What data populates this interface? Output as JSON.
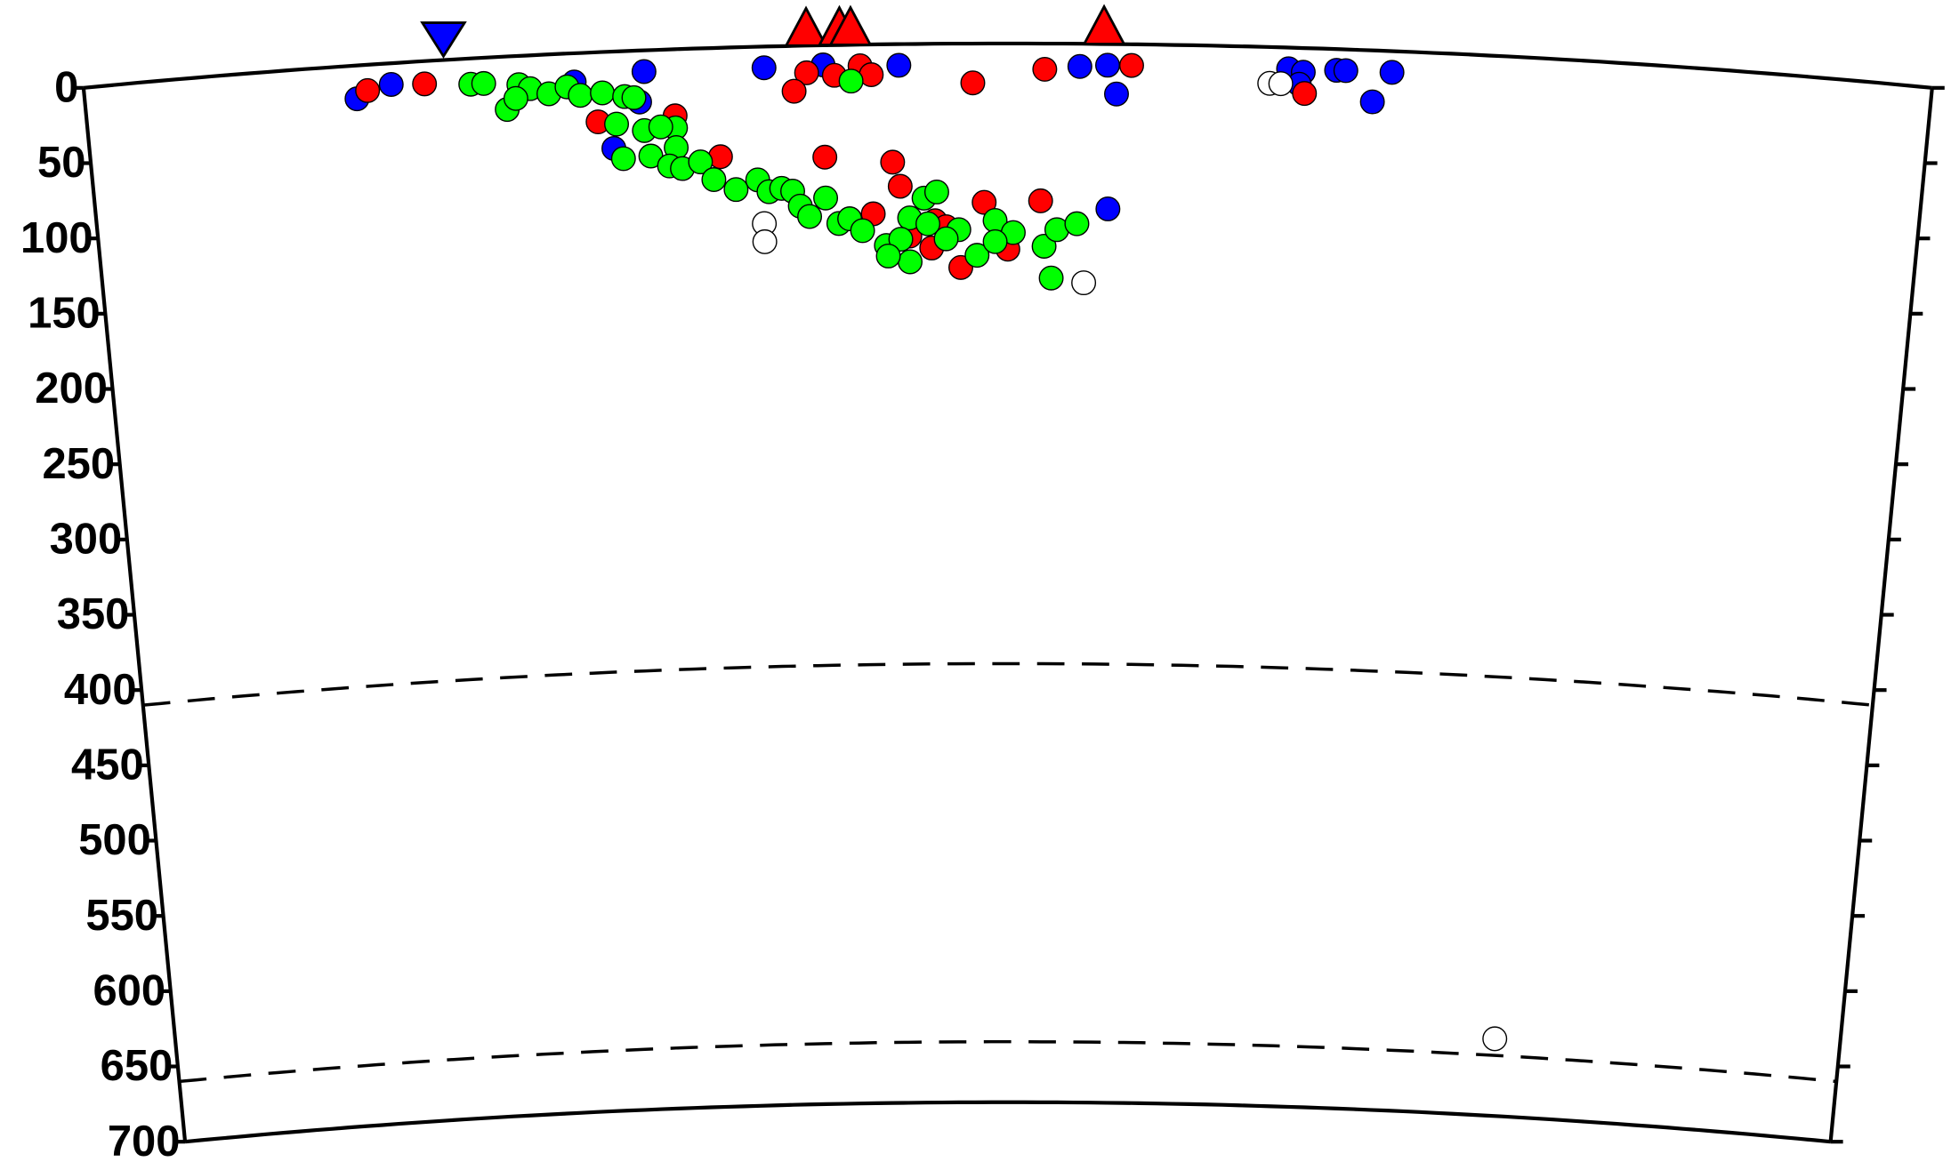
{
  "chart_data": {
    "type": "scatter",
    "xlim": [
      0,
      100
    ],
    "ylim": [
      0,
      700
    ],
    "yticks": [
      0,
      50,
      100,
      150,
      200,
      250,
      300,
      350,
      400,
      450,
      500,
      550,
      600,
      650,
      700
    ],
    "discontinuities": [
      410,
      660
    ],
    "volcanoes": [
      39.1,
      40.9,
      41.5,
      55.2
    ],
    "trench": 19.5,
    "series": [
      {
        "color": "#0000ff",
        "x": [
          14.7,
          16.6,
          26.5,
          30.3,
          28.5,
          30,
          36.8,
          40,
          44.1,
          53.9,
          55.4,
          55.9,
          55.5,
          65.2,
          66,
          65.8,
          67.8,
          68.3,
          70.8,
          69.8
        ],
        "values": [
          22,
          14,
          19,
          14,
          64,
          34,
          14,
          13,
          14,
          15,
          14,
          33,
          109,
          14,
          16,
          24,
          14,
          14,
          14,
          34
        ]
      },
      {
        "color": "#ff0000",
        "x": [
          15.3,
          18.4,
          27.7,
          31.9,
          34.3,
          39.1,
          38.4,
          40.6,
          42,
          42.6,
          40,
          43.7,
          48.1,
          52,
          56.7,
          66.1,
          51.8,
          48.7,
          46,
          42.6,
          41.3,
          44.1,
          45.8,
          47.4,
          50,
          46.6,
          44.6
        ],
        "values": [
          17,
          15,
          46,
          44,
          72,
          18,
          30,
          20,
          14,
          20,
          74,
          78,
          26,
          17,
          14,
          30,
          104,
          105,
          117,
          112,
          115,
          94,
          135,
          148,
          136,
          121,
          127
        ]
      },
      {
        "color": "#00ff00",
        "x": [
          20.9,
          21.6,
          23.5,
          24.1,
          22.8,
          23.3,
          25.1,
          26.1,
          26.8,
          28,
          29.2,
          29.7,
          28.7,
          30.2,
          31.9,
          31.1,
          31.9,
          29,
          30.5,
          31.5,
          32.2,
          33.2,
          33.9,
          35.1,
          36.3,
          36.9,
          37.6,
          38.2,
          38.6,
          39.1,
          40,
          40.7,
          41.3,
          42,
          43.3,
          44.6,
          45.4,
          46.1,
          45.6,
          44.1,
          44.6,
          47.3,
          48.3,
          49.3,
          50.3,
          52,
          52.7,
          53.8,
          52.4,
          41.5,
          43.4,
          46.6,
          49.3
        ],
        "values": [
          17,
          17,
          19,
          22,
          35,
          28,
          26,
          22,
          28,
          27,
          30,
          31,
          48,
          53,
          52,
          51,
          65,
          71,
          70,
          77,
          79,
          75,
          87,
          94,
          88,
          96,
          94,
          96,
          106,
          113,
          101,
          118,
          115,
          123,
          133,
          115,
          102,
          98,
          119,
          129,
          144,
          123,
          140,
          117,
          125,
          134,
          123,
          119,
          155,
          24,
          140,
          129,
          131
        ]
      },
      {
        "color": "#ffffff",
        "x": [
          64.2,
          64.8,
          36.6,
          36.6,
          54.2,
          79.3
        ],
        "values": [
          24,
          24,
          117,
          129,
          158,
          649
        ]
      }
    ]
  }
}
